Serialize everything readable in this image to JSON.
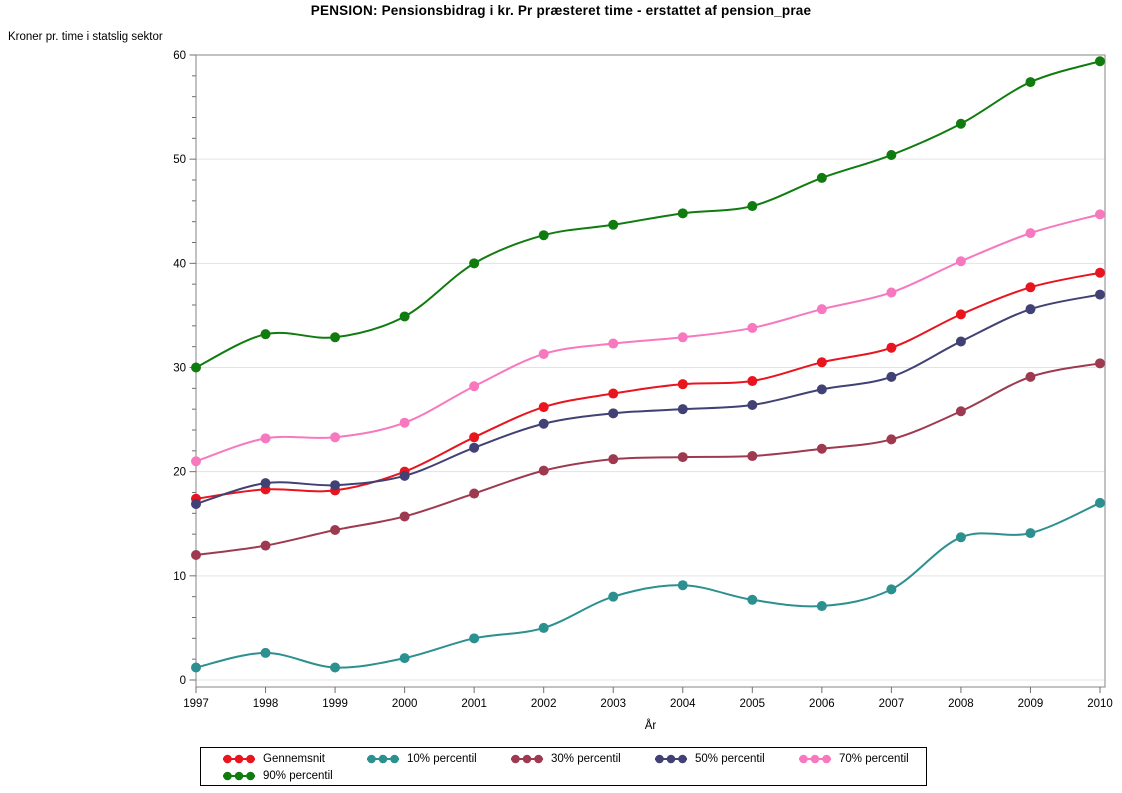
{
  "title": "PENSION: Pensionsbidrag i kr. Pr præsteret time - erstattet af pension_prae",
  "chart_data": {
    "type": "line",
    "title": "PENSION: Pensionsbidrag i kr. Pr præsteret time - erstattet af pension_prae",
    "ylabel": "Kroner pr. time i statslig sektor",
    "xlabel": "År",
    "x": [
      1997,
      1998,
      1999,
      2000,
      2001,
      2002,
      2003,
      2004,
      2005,
      2006,
      2007,
      2008,
      2009,
      2010
    ],
    "ylim": [
      0,
      60
    ],
    "ytick_step": 10,
    "yminor_step": 2,
    "grid": "horizontal-major-only",
    "legend_position": "bottom",
    "legend_columns": 5,
    "marker": "filled-circle",
    "smooth": true,
    "series": [
      {
        "name": "Gennemsnit",
        "color": "#e8141e",
        "values": [
          17.4,
          18.3,
          18.2,
          20.0,
          23.3,
          26.2,
          27.5,
          28.4,
          28.7,
          30.5,
          31.9,
          35.1,
          37.7,
          39.1
        ]
      },
      {
        "name": "10% percentil",
        "color": "#2b908f",
        "values": [
          1.2,
          2.6,
          1.2,
          2.1,
          4.0,
          5.0,
          8.0,
          9.1,
          7.7,
          7.1,
          8.7,
          13.7,
          14.1,
          17.0
        ]
      },
      {
        "name": "30% percentil",
        "color": "#9e3a50",
        "values": [
          12.0,
          12.9,
          14.4,
          15.7,
          17.9,
          20.1,
          21.2,
          21.4,
          21.5,
          22.2,
          23.1,
          25.8,
          29.1,
          30.4
        ]
      },
      {
        "name": "50% percentil",
        "color": "#414175",
        "values": [
          16.9,
          18.9,
          18.7,
          19.6,
          22.3,
          24.6,
          25.6,
          26.0,
          26.4,
          27.9,
          29.1,
          32.5,
          35.6,
          37.0
        ]
      },
      {
        "name": "70% percentil",
        "color": "#f878c0",
        "values": [
          21.0,
          23.2,
          23.3,
          24.7,
          28.2,
          31.3,
          32.3,
          32.9,
          33.8,
          35.6,
          37.2,
          40.2,
          42.9,
          44.7
        ]
      },
      {
        "name": "90% percentil",
        "color": "#107c10",
        "values": [
          30.0,
          33.2,
          32.9,
          34.9,
          40.0,
          42.7,
          43.7,
          44.8,
          45.5,
          48.2,
          50.4,
          53.4,
          57.4,
          59.4
        ]
      }
    ],
    "style_colors": {
      "frame": "#9a9a9a",
      "gridline": "#e3e3e3",
      "tick": "#707070",
      "text": "#000000"
    }
  }
}
